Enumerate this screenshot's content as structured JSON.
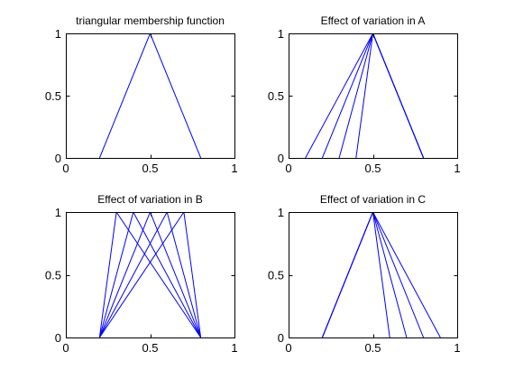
{
  "chart_data": [
    {
      "type": "line",
      "title": "triangular membership function",
      "xlabel": "",
      "ylabel": "",
      "xlim": [
        0,
        1
      ],
      "ylim": [
        0,
        1
      ],
      "xticks": [
        "0",
        "0.5",
        "1"
      ],
      "yticks": [
        "0",
        "0.5",
        "1"
      ],
      "grid": false,
      "series": [
        {
          "x": [
            0.2,
            0.5,
            0.8
          ],
          "y": [
            0,
            1,
            0
          ]
        }
      ]
    },
    {
      "type": "line",
      "title": "Effect of variation in A",
      "xlabel": "",
      "ylabel": "",
      "xlim": [
        0,
        1
      ],
      "ylim": [
        0,
        1
      ],
      "xticks": [
        "0",
        "0.5",
        "1"
      ],
      "yticks": [
        "0",
        "0.5",
        "1"
      ],
      "grid": false,
      "series": [
        {
          "x": [
            0.1,
            0.5,
            0.8
          ],
          "y": [
            0,
            1,
            0
          ]
        },
        {
          "x": [
            0.2,
            0.5,
            0.8
          ],
          "y": [
            0,
            1,
            0
          ]
        },
        {
          "x": [
            0.3,
            0.5,
            0.8
          ],
          "y": [
            0,
            1,
            0
          ]
        },
        {
          "x": [
            0.4,
            0.5,
            0.8
          ],
          "y": [
            0,
            1,
            0
          ]
        }
      ]
    },
    {
      "type": "line",
      "title": "Effect of variation in B",
      "xlabel": "",
      "ylabel": "",
      "xlim": [
        0,
        1
      ],
      "ylim": [
        0,
        1
      ],
      "xticks": [
        "0",
        "0.5",
        "1"
      ],
      "yticks": [
        "0",
        "0.5",
        "1"
      ],
      "grid": false,
      "series": [
        {
          "x": [
            0.2,
            0.3,
            0.8
          ],
          "y": [
            0,
            1,
            0
          ]
        },
        {
          "x": [
            0.2,
            0.4,
            0.8
          ],
          "y": [
            0,
            1,
            0
          ]
        },
        {
          "x": [
            0.2,
            0.5,
            0.8
          ],
          "y": [
            0,
            1,
            0
          ]
        },
        {
          "x": [
            0.2,
            0.6,
            0.8
          ],
          "y": [
            0,
            1,
            0
          ]
        },
        {
          "x": [
            0.2,
            0.7,
            0.8
          ],
          "y": [
            0,
            1,
            0
          ]
        }
      ]
    },
    {
      "type": "line",
      "title": "Effect of variation in C",
      "xlabel": "",
      "ylabel": "",
      "xlim": [
        0,
        1
      ],
      "ylim": [
        0,
        1
      ],
      "xticks": [
        "0",
        "0.5",
        "1"
      ],
      "yticks": [
        "0",
        "0.5",
        "1"
      ],
      "grid": false,
      "series": [
        {
          "x": [
            0.2,
            0.5,
            0.6
          ],
          "y": [
            0,
            1,
            0
          ]
        },
        {
          "x": [
            0.2,
            0.5,
            0.7
          ],
          "y": [
            0,
            1,
            0
          ]
        },
        {
          "x": [
            0.2,
            0.5,
            0.8
          ],
          "y": [
            0,
            1,
            0
          ]
        },
        {
          "x": [
            0.2,
            0.5,
            0.9
          ],
          "y": [
            0,
            1,
            0
          ]
        }
      ]
    }
  ],
  "colors": {
    "line": "#0000ff",
    "axes": "#000000",
    "background": "#ffffff"
  }
}
